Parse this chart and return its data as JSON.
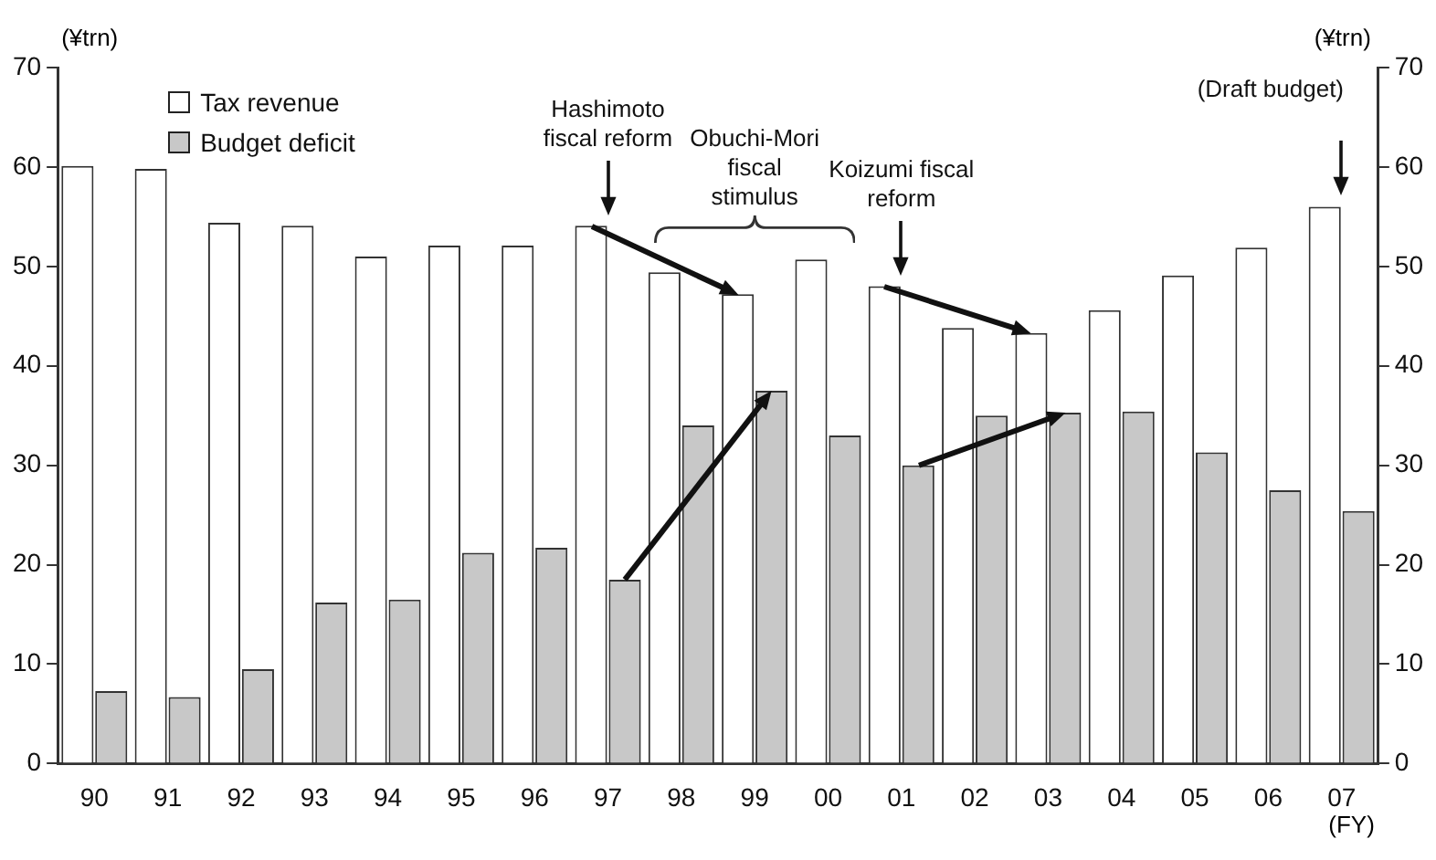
{
  "chart_data": {
    "type": "bar",
    "ylabel": "(¥trn)",
    "y2label": "(¥trn)",
    "xlabel": "(FY)",
    "categories": [
      "90",
      "91",
      "92",
      "93",
      "94",
      "95",
      "96",
      "97",
      "98",
      "99",
      "00",
      "01",
      "02",
      "03",
      "04",
      "05",
      "06",
      "07"
    ],
    "series": [
      {
        "name": "Tax revenue",
        "color": "#ffffff",
        "values": [
          60.1,
          59.8,
          54.4,
          54.1,
          51.0,
          52.1,
          52.1,
          54.1,
          49.4,
          47.2,
          50.7,
          48.0,
          43.8,
          43.3,
          45.6,
          49.1,
          51.9,
          56.0
        ]
      },
      {
        "name": "Budget deficit",
        "color": "#c8c8c8",
        "values": [
          7.3,
          6.7,
          9.5,
          16.2,
          16.5,
          21.2,
          21.7,
          18.5,
          34.0,
          37.5,
          33.0,
          30.0,
          35.0,
          35.3,
          35.4,
          31.3,
          27.5,
          25.4
        ]
      }
    ],
    "ylim": [
      0,
      70
    ],
    "yticks": [
      0,
      10,
      20,
      30,
      40,
      50,
      60,
      70
    ],
    "y2lim": [
      0,
      70
    ],
    "y2ticks": [
      0,
      10,
      20,
      30,
      40,
      50,
      60,
      70
    ],
    "grid": false,
    "legend": "top left",
    "annotations": [
      "Hashimoto fiscal reform",
      "Obuchi-Mori fiscal stimulus",
      "Koizumi fiscal reform",
      "(Draft budget)"
    ]
  }
}
